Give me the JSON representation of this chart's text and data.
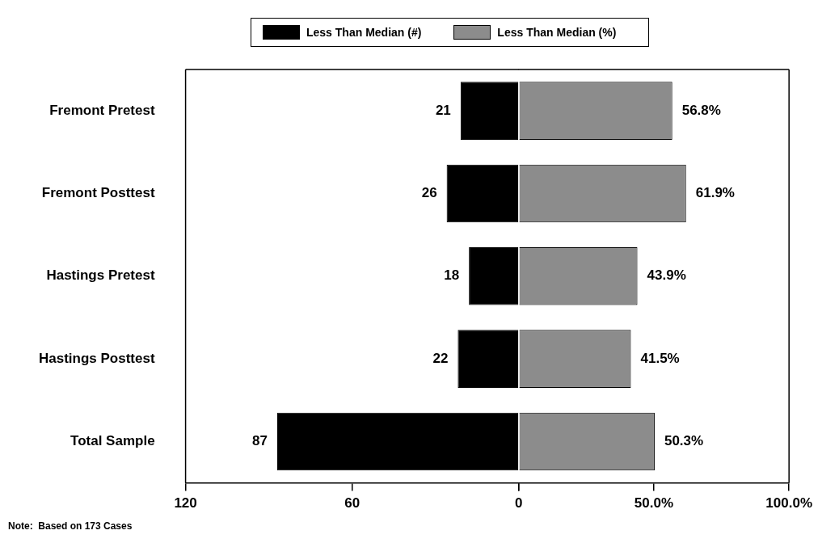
{
  "chart_data": [
    {
      "type": "bar",
      "orientation": "horizontal",
      "categories": [
        "Fremont Pretest",
        "Fremont Posttest",
        "Hastings Pretest",
        "Hastings Posttest",
        "Total Sample"
      ],
      "series": [
        {
          "name": "Less Than Median (#)",
          "color": "#000000",
          "values": [
            21,
            26,
            18,
            22,
            87
          ],
          "value_labels": [
            "21",
            "26",
            "18",
            "22",
            "87"
          ]
        }
      ],
      "xlim": [
        120,
        0
      ],
      "xticks": [
        120,
        60,
        {
          "value": 0,
          "label": null
        }
      ],
      "legend": "top",
      "annotations": [
        "Note:  Based on 173 Cases"
      ]
    },
    {
      "type": "bar",
      "orientation": "horizontal",
      "series": [
        {
          "name": "Less Than Median (%)",
          "color": "#8c8c8c",
          "values": [
            56.8,
            61.9,
            43.9,
            41.5,
            50.3
          ],
          "value_labels": [
            "56.8%",
            "61.9%",
            "43.9%",
            "41.5%",
            "50.3%"
          ]
        }
      ],
      "xlim": [
        0,
        100
      ],
      "xticks": [
        0,
        {
          "value": 50,
          "label": "50.0%"
        },
        {
          "value": 100,
          "label": "100.0%"
        }
      ],
      "tick_labels": "x",
      "legend": "top"
    }
  ]
}
